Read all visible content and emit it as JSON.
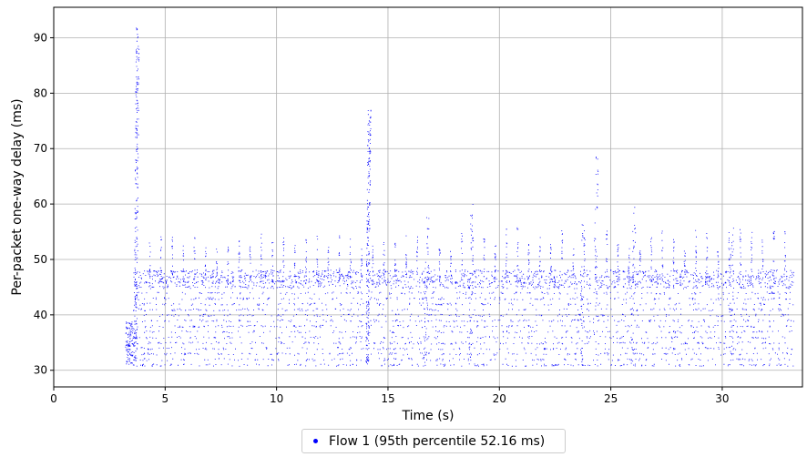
{
  "chart_data": {
    "type": "scatter",
    "xlabel": "Time (s)",
    "ylabel": "Per-packet one-way delay (ms)",
    "xlim": [
      0,
      33.6
    ],
    "ylim": [
      27,
      95.5
    ],
    "xticks": [
      0,
      5,
      10,
      15,
      20,
      25,
      30
    ],
    "yticks": [
      30,
      40,
      50,
      60,
      70,
      80,
      90
    ],
    "grid": true,
    "legend_placement": "bottom-center, below plot",
    "series": [
      {
        "name": "Flow 1 (95th percentile 52.16 ms)",
        "color": "#0000ff",
        "x_range": [
          3.2,
          33.2
        ],
        "baseline_min_delay": 31,
        "typical_band": [
          31,
          48
        ],
        "peaks": [
          {
            "x": 3.7,
            "y": 92
          },
          {
            "x": 14.1,
            "y": 77
          },
          {
            "x": 24.3,
            "y": 69
          },
          {
            "x": 18.7,
            "y": 61.5
          },
          {
            "x": 26.0,
            "y": 59.5
          },
          {
            "x": 23.7,
            "y": 58
          },
          {
            "x": 16.7,
            "y": 58
          },
          {
            "x": 30.4,
            "y": 56.5
          }
        ],
        "gaps": [
          {
            "x": 14.0,
            "min_y": 31
          },
          {
            "x": 24.2,
            "min_y": 31
          }
        ]
      }
    ]
  }
}
